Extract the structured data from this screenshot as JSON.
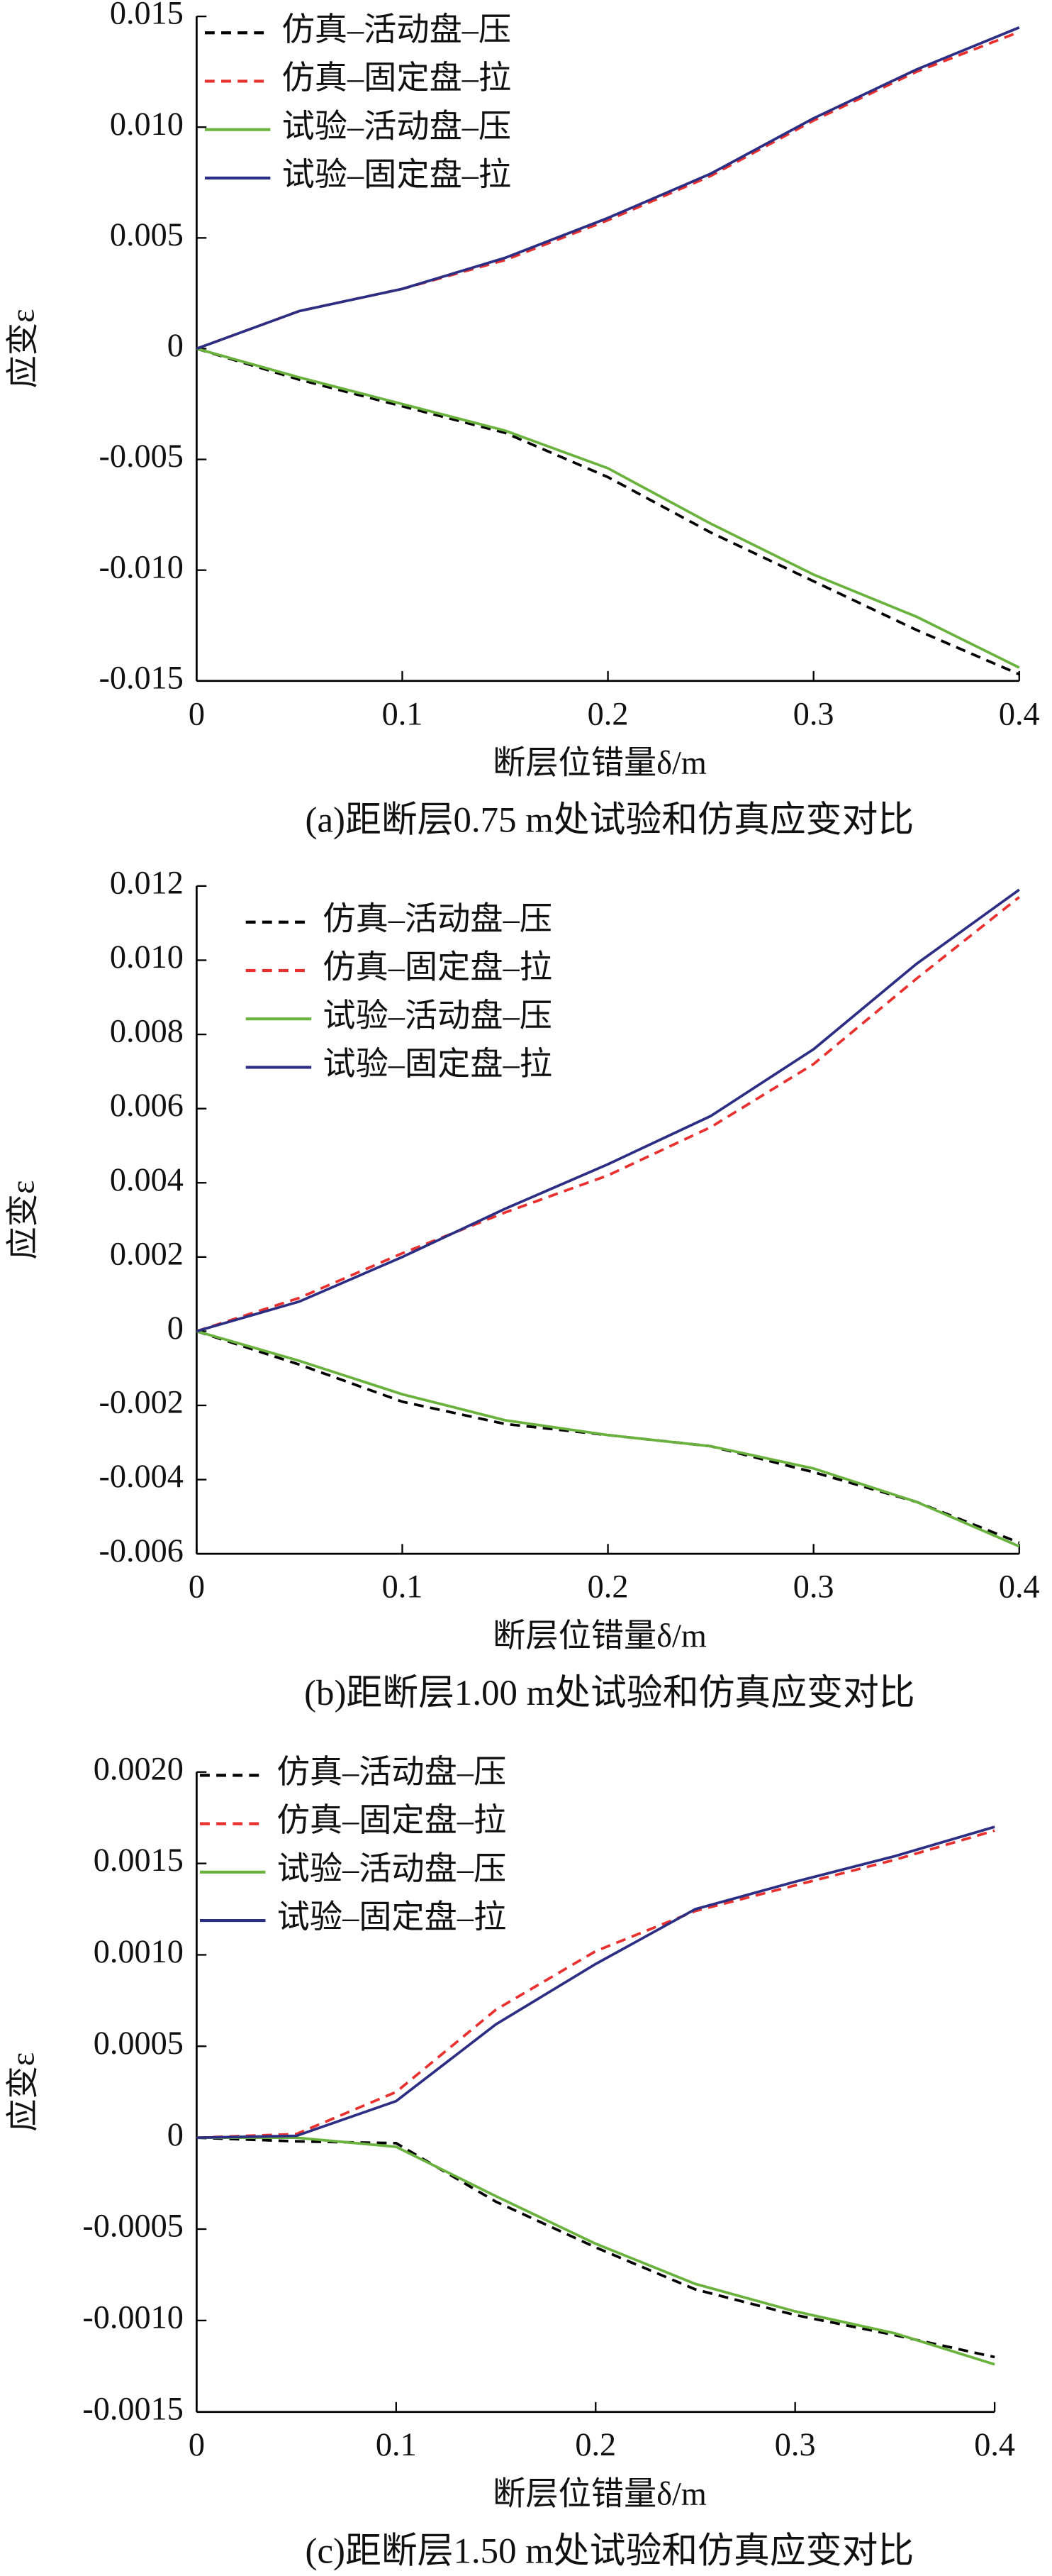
{
  "chart_data": [
    {
      "type": "line",
      "title": "(a)距断层0.75 m处试验和仿真应变对比",
      "x_label": "断层位错量δ/m",
      "y_label": "应变ε",
      "x": [
        0,
        0.05,
        0.1,
        0.15,
        0.2,
        0.25,
        0.3,
        0.35,
        0.4
      ],
      "series": [
        {
          "name": "仿真–活动盘–压",
          "color": "#000000",
          "dashed": true,
          "values": [
            0,
            -0.0014,
            -0.0026,
            -0.0038,
            -0.0058,
            -0.0083,
            -0.0105,
            -0.0127,
            -0.0147
          ]
        },
        {
          "name": "仿真–固定盘–拉",
          "color": "#e8312f",
          "dashed": true,
          "values": [
            0,
            0.0017,
            0.0027,
            0.004,
            0.0058,
            0.0078,
            0.0103,
            0.0125,
            0.0143
          ]
        },
        {
          "name": "试验–活动盘–压",
          "color": "#6ab23e",
          "dashed": false,
          "values": [
            0,
            -0.0013,
            -0.0025,
            -0.0037,
            -0.0054,
            -0.0079,
            -0.0102,
            -0.0121,
            -0.0144
          ]
        },
        {
          "name": "试验–固定盘–拉",
          "color": "#2c2e83",
          "dashed": false,
          "values": [
            0,
            0.0017,
            0.0027,
            0.0041,
            0.0059,
            0.0079,
            0.0104,
            0.0126,
            0.0145
          ]
        }
      ],
      "xlim": [
        0,
        0.4
      ],
      "xticks": [
        0,
        0.1,
        0.2,
        0.3,
        0.4
      ],
      "ylim": [
        -0.015,
        0.015
      ],
      "yticks": [
        {
          "value": 0.015,
          "label": "0.015"
        },
        {
          "value": 0.01,
          "label": "0.010"
        },
        0.005,
        0,
        -0.005,
        {
          "value": -0.01,
          "label": "-0.010"
        },
        -0.015
      ]
    },
    {
      "type": "line",
      "title": "(b)距断层1.00 m处试验和仿真应变对比",
      "x_label": "断层位错量δ/m",
      "y_label": "应变ε",
      "x": [
        0,
        0.05,
        0.1,
        0.15,
        0.2,
        0.25,
        0.3,
        0.35,
        0.4
      ],
      "series": [
        {
          "name": "仿真–活动盘–压",
          "color": "#000000",
          "dashed": true,
          "values": [
            0,
            -0.0009,
            -0.0019,
            -0.0025,
            -0.0028,
            -0.0031,
            -0.0038,
            -0.0046,
            -0.0057
          ]
        },
        {
          "name": "仿真–固定盘–拉",
          "color": "#e8312f",
          "dashed": true,
          "values": [
            0,
            0.0009,
            0.0021,
            0.0032,
            0.0042,
            0.0055,
            0.0072,
            0.0095,
            0.0117
          ]
        },
        {
          "name": "试验–活动盘–压",
          "color": "#6ab23e",
          "dashed": false,
          "values": [
            0,
            -0.0008,
            -0.0017,
            -0.0024,
            -0.0028,
            -0.0031,
            -0.0037,
            -0.0046,
            -0.0058
          ]
        },
        {
          "name": "试验–固定盘–拉",
          "color": "#2c2e83",
          "dashed": false,
          "values": [
            0,
            0.0008,
            0.002,
            0.0033,
            0.0045,
            0.0058,
            0.0076,
            0.0099,
            0.0119
          ]
        }
      ],
      "xlim": [
        0,
        0.4
      ],
      "xticks": [
        0,
        0.1,
        0.2,
        0.3,
        0.4
      ],
      "ylim": [
        -0.006,
        0.012
      ],
      "yticks": [
        0.012,
        {
          "value": 0.01,
          "label": "0.010"
        },
        0.008,
        0.006,
        0.004,
        0.002,
        0,
        -0.002,
        -0.004,
        -0.006
      ]
    },
    {
      "type": "line",
      "title": "(c)距断层1.50 m处试验和仿真应变对比",
      "x_label": "断层位错量δ/m",
      "y_label": "应变ε",
      "x": [
        0,
        0.05,
        0.1,
        0.15,
        0.2,
        0.25,
        0.3,
        0.35,
        0.4
      ],
      "series": [
        {
          "name": "仿真–活动盘–压",
          "color": "#000000",
          "dashed": true,
          "values": [
            0,
            -2e-05,
            -3e-05,
            -0.00035,
            -0.0006,
            -0.00083,
            -0.00097,
            -0.00108,
            -0.0012
          ]
        },
        {
          "name": "仿真–固定盘–拉",
          "color": "#e8312f",
          "dashed": true,
          "values": [
            0,
            2e-05,
            0.00025,
            0.0007,
            0.00102,
            0.00124,
            0.00138,
            0.00152,
            0.00168
          ]
        },
        {
          "name": "试验–活动盘–压",
          "color": "#6ab23e",
          "dashed": false,
          "values": [
            0,
            0,
            -5e-05,
            -0.00032,
            -0.00058,
            -0.0008,
            -0.00095,
            -0.00107,
            -0.00124
          ]
        },
        {
          "name": "试验–固定盘–拉",
          "color": "#2c2e83",
          "dashed": false,
          "values": [
            0,
            1e-05,
            0.0002,
            0.00062,
            0.00095,
            0.00125,
            0.0014,
            0.00154,
            0.0017
          ]
        }
      ],
      "xlim": [
        0,
        0.4
      ],
      "xticks": [
        0,
        0.1,
        0.2,
        0.3,
        0.4
      ],
      "ylim": [
        -0.0015,
        0.002
      ],
      "yticks": [
        {
          "value": 0.002,
          "label": "0.0020"
        },
        0.0015,
        {
          "value": 0.001,
          "label": "0.0010"
        },
        0.0005,
        0,
        -0.0005,
        {
          "value": -0.001,
          "label": "-0.0010"
        },
        -0.0015
      ]
    }
  ]
}
